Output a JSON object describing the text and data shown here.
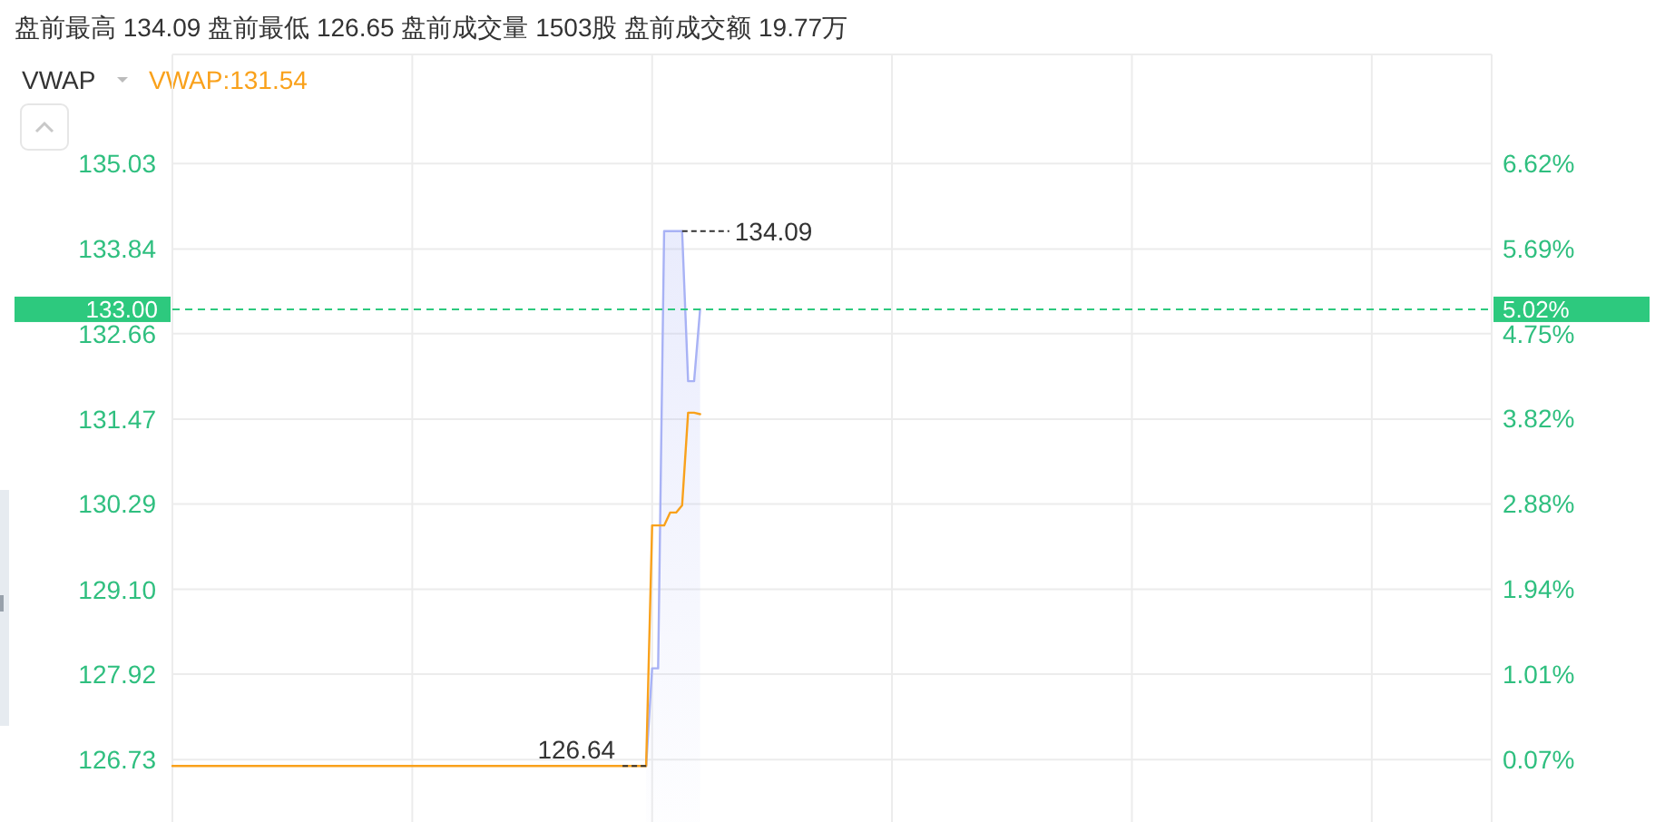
{
  "chart_data": {
    "type": "line",
    "title": "盘前最高 134.09 盘前最低 126.65 盘前成交量 1503股 盘前成交额 19.77万",
    "subtitle": "VWAP",
    "categories": [
      null,
      null,
      null,
      null,
      null,
      null,
      null,
      null,
      null,
      null,
      null,
      null,
      null,
      null,
      null,
      null,
      null,
      null,
      null,
      null,
      null,
      null,
      null,
      null,
      null,
      null,
      null,
      null,
      null,
      null,
      null,
      null,
      null,
      null,
      null,
      null,
      null,
      null,
      null,
      null,
      null,
      null,
      null,
      null,
      null,
      null,
      null,
      null,
      null,
      null,
      null,
      null,
      null,
      null,
      null,
      null,
      null,
      null,
      null,
      null,
      null,
      null,
      null,
      null,
      null,
      null,
      null,
      null,
      null,
      null,
      null,
      null,
      null,
      null,
      null,
      null,
      null,
      null,
      null,
      null,
      null,
      null,
      null,
      null,
      null,
      null,
      null,
      null,
      null,
      null,
      null,
      null,
      null,
      null,
      null,
      null,
      null,
      null,
      null,
      null,
      null,
      null,
      null,
      null,
      null,
      null,
      null,
      null,
      null,
      null,
      null,
      null,
      null,
      null,
      null,
      null,
      null,
      null,
      null,
      null,
      null,
      null,
      null,
      null,
      null,
      null,
      null,
      null,
      null,
      null,
      null,
      null,
      null,
      null,
      null,
      null,
      null,
      null,
      null,
      null,
      null,
      null,
      null,
      null,
      null,
      null,
      null,
      null,
      null,
      null,
      null,
      null,
      null,
      null,
      null,
      null,
      null,
      null,
      null,
      null,
      null,
      null,
      null,
      null,
      null,
      null,
      null,
      null,
      null,
      null,
      null,
      null,
      null,
      null,
      null,
      null,
      null,
      null,
      null,
      null,
      null,
      null,
      null,
      null,
      null,
      null,
      null,
      null,
      null,
      null,
      null,
      null,
      null,
      null,
      null,
      null,
      null,
      null,
      null,
      null,
      null,
      null,
      null,
      null,
      null,
      null,
      null,
      null,
      null,
      null,
      null,
      null,
      null,
      null,
      null,
      null,
      null,
      null,
      null,
      null,
      null
    ],
    "series": [
      {
        "type": "area",
        "color": "#a8b2f5",
        "values": [
          null,
          null,
          null,
          null,
          null,
          null,
          null,
          null,
          null,
          null,
          null,
          null,
          null,
          null,
          null,
          null,
          null,
          null,
          null,
          null,
          null,
          null,
          null,
          null,
          null,
          null,
          null,
          null,
          null,
          null,
          null,
          null,
          null,
          null,
          null,
          null,
          null,
          null,
          null,
          null,
          null,
          null,
          null,
          null,
          null,
          null,
          null,
          null,
          null,
          null,
          null,
          null,
          null,
          null,
          null,
          null,
          null,
          null,
          null,
          null,
          null,
          null,
          null,
          null,
          null,
          null,
          null,
          null,
          null,
          null,
          null,
          null,
          null,
          null,
          null,
          null,
          null,
          null,
          null,
          126.64,
          128.0,
          128.0,
          134.09,
          134.09,
          134.09,
          134.09,
          132.0,
          132.0,
          133.0,
          null,
          null,
          null,
          null,
          null,
          null,
          null,
          null,
          null,
          null,
          null,
          null,
          null,
          null,
          null,
          null,
          null,
          null,
          null,
          null,
          null,
          null,
          null,
          null,
          null,
          null,
          null,
          null,
          null,
          null,
          null,
          null,
          null,
          null,
          null,
          null,
          null,
          null,
          null,
          null,
          null,
          null,
          null,
          null,
          null,
          null,
          null,
          null,
          null,
          null,
          null,
          null,
          null,
          null,
          null,
          null,
          null,
          null,
          null,
          null,
          null,
          null,
          null,
          null,
          null,
          null,
          null,
          null,
          null,
          null,
          null,
          null,
          null,
          null,
          null,
          null,
          null,
          null,
          null,
          null,
          null,
          null,
          null,
          null,
          null,
          null,
          null,
          null,
          null,
          null,
          null,
          null,
          null,
          null,
          null,
          null,
          null,
          null,
          null,
          null,
          null,
          null,
          null,
          null,
          null,
          null,
          null,
          null,
          null,
          null,
          null,
          null,
          null,
          null,
          null,
          null,
          null,
          null,
          null,
          null,
          null,
          null,
          null,
          null,
          null,
          null,
          null,
          null,
          null,
          null,
          null,
          null
        ]
      },
      {
        "name": "VWAP:131.54",
        "color": "#f9a11b",
        "values": [
          126.64,
          126.64,
          126.64,
          126.64,
          126.64,
          126.64,
          126.64,
          126.64,
          126.64,
          126.64,
          126.64,
          126.64,
          126.64,
          126.64,
          126.64,
          126.64,
          126.64,
          126.64,
          126.64,
          126.64,
          126.64,
          126.64,
          126.64,
          126.64,
          126.64,
          126.64,
          126.64,
          126.64,
          126.64,
          126.64,
          126.64,
          126.64,
          126.64,
          126.64,
          126.64,
          126.64,
          126.64,
          126.64,
          126.64,
          126.64,
          126.64,
          126.64,
          126.64,
          126.64,
          126.64,
          126.64,
          126.64,
          126.64,
          126.64,
          126.64,
          126.64,
          126.64,
          126.64,
          126.64,
          126.64,
          126.64,
          126.64,
          126.64,
          126.64,
          126.64,
          126.64,
          126.64,
          126.64,
          126.64,
          126.64,
          126.64,
          126.64,
          126.64,
          126.64,
          126.64,
          126.64,
          126.64,
          126.64,
          126.64,
          126.64,
          126.64,
          126.64,
          126.64,
          126.64,
          126.64,
          129.99,
          129.99,
          129.99,
          130.17,
          130.17,
          130.27,
          131.56,
          131.56,
          131.54,
          null,
          null,
          null,
          null,
          null,
          null,
          null,
          null,
          null,
          null,
          null,
          null,
          null,
          null,
          null,
          null,
          null,
          null,
          null,
          null,
          null,
          null,
          null,
          null,
          null,
          null,
          null,
          null,
          null,
          null,
          null,
          null,
          null,
          null,
          null,
          null,
          null,
          null,
          null,
          null,
          null,
          null,
          null,
          null,
          null,
          null,
          null,
          null,
          null,
          null,
          null,
          null,
          null,
          null,
          null,
          null,
          null,
          null,
          null,
          null,
          null,
          null,
          null,
          null,
          null,
          null,
          null,
          null,
          null,
          null,
          null,
          null,
          null,
          null,
          null,
          null,
          null,
          null,
          null,
          null,
          null,
          null,
          null,
          null,
          null,
          null,
          null,
          null,
          null,
          null,
          null,
          null,
          null,
          null,
          null,
          null,
          null,
          null,
          null,
          null,
          null,
          null,
          null,
          null,
          null,
          null,
          null,
          null,
          null,
          null,
          null,
          null,
          null,
          null,
          null,
          null,
          null,
          null,
          null,
          null,
          null,
          null,
          null,
          null,
          null,
          null,
          null,
          null,
          null,
          null,
          null,
          null
        ]
      }
    ],
    "ylim": [
      125.86,
      136.55
    ],
    "yticks": [
      126.73,
      127.92,
      {
        "value": 129.1,
        "label": "129.10"
      },
      130.29,
      131.47,
      132.66,
      133.84,
      135.03
    ],
    "y2lim": [
      -0.62,
      7.82
    ],
    "y2ticks": [
      {
        "value": 0.07,
        "label": "0.07%"
      },
      {
        "value": 1.01,
        "label": "1.01%"
      },
      {
        "value": 1.94,
        "label": "1.94%"
      },
      {
        "value": 2.88,
        "label": "2.88%"
      },
      {
        "value": 3.82,
        "label": "3.82%"
      },
      {
        "value": 4.75,
        "label": "4.75%"
      },
      {
        "value": 5.69,
        "label": "5.69%"
      },
      {
        "value": 6.62,
        "label": "6.62%"
      }
    ],
    "ref_lines": [
      {
        "axis": "y",
        "value": 133.0,
        "label": "133.00",
        "color": "#2dc97e",
        "line_style": "dashed"
      }
    ],
    "annotations": [
      "134.09",
      "126.64",
      "5.02%"
    ],
    "grid": true,
    "legend": "top left",
    "tick_labels": "y"
  }
}
